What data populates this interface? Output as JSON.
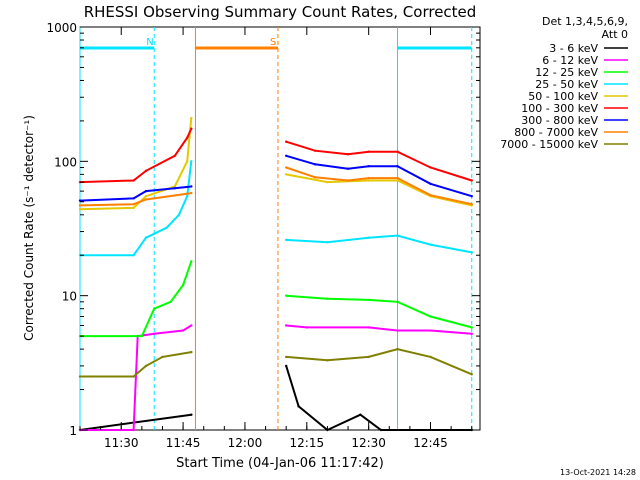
{
  "chart_data": {
    "type": "line",
    "title": "RHESSI Observing Summary Count Rates, Corrected",
    "xlabel": "Start Time (04-Jan-06 11:17:42)",
    "ylabel": "Corrected Count Rate (s⁻¹ detector⁻¹)",
    "yscale": "log",
    "ylim": [
      1,
      1000
    ],
    "xlim_minutes": [
      "11:20",
      "12:57"
    ],
    "x_ticks": [
      "11:30",
      "11:45",
      "12:00",
      "12:15",
      "12:30",
      "12:45"
    ],
    "y_ticks": [
      "1",
      "10",
      "100",
      "1000"
    ],
    "legend_header": [
      "Det 1,3,4,5,6,9,",
      "Att 0"
    ],
    "legend_position": "right",
    "flags": [
      {
        "label": "N",
        "color": "#00e5ff",
        "segments": [
          [
            "11:20",
            "11:38"
          ],
          [
            "12:37",
            "12:55"
          ]
        ]
      },
      {
        "label": "S",
        "color": "#ff8000",
        "segments": [
          [
            "11:48",
            "12:08"
          ]
        ]
      }
    ],
    "vertical_markers": [
      {
        "time": "11:20",
        "color": "#00e5ff",
        "style": "solid"
      },
      {
        "time": "11:38",
        "color": "#00e5ff",
        "style": "dashed"
      },
      {
        "time": "11:48",
        "color": "#ff8000",
        "style": "solid"
      },
      {
        "time": "12:08",
        "color": "#ff8000",
        "style": "dashed"
      },
      {
        "time": "12:37",
        "color": "#00e5ff",
        "style": "solid"
      },
      {
        "time": "12:55",
        "color": "#00e5ff",
        "style": "dashed"
      }
    ],
    "gaps": [
      [
        "11:48",
        "12:10"
      ]
    ],
    "series": [
      {
        "name": "3 - 6 keV",
        "color": "#000000",
        "points": [
          [
            "11:20",
            1
          ],
          [
            "11:47",
            1.3
          ],
          [
            "12:10",
            3
          ],
          [
            "12:13",
            1.5
          ],
          [
            "12:20",
            1
          ],
          [
            "12:28",
            1.3
          ],
          [
            "12:33",
            1
          ],
          [
            "12:55",
            1
          ]
        ]
      },
      {
        "name": "6 - 12 keV",
        "color": "#ff00ff",
        "points": [
          [
            "11:20",
            1
          ],
          [
            "11:33",
            1
          ],
          [
            "11:34",
            5
          ],
          [
            "11:38",
            5.2
          ],
          [
            "11:45",
            5.5
          ],
          [
            "11:47",
            6
          ],
          [
            "12:10",
            6
          ],
          [
            "12:15",
            5.8
          ],
          [
            "12:30",
            5.8
          ],
          [
            "12:37",
            5.5
          ],
          [
            "12:45",
            5.5
          ],
          [
            "12:55",
            5.2
          ]
        ]
      },
      {
        "name": "12 - 25 keV",
        "color": "#00ff00",
        "points": [
          [
            "11:20",
            5
          ],
          [
            "11:35",
            5
          ],
          [
            "11:38",
            8
          ],
          [
            "11:42",
            9
          ],
          [
            "11:45",
            12
          ],
          [
            "11:47",
            18
          ],
          [
            "12:10",
            10
          ],
          [
            "12:20",
            9.5
          ],
          [
            "12:30",
            9.3
          ],
          [
            "12:37",
            9
          ],
          [
            "12:45",
            7
          ],
          [
            "12:55",
            5.8
          ]
        ]
      },
      {
        "name": "25 - 50 keV",
        "color": "#00e5ff",
        "points": [
          [
            "11:20",
            20
          ],
          [
            "11:33",
            20
          ],
          [
            "11:36",
            27
          ],
          [
            "11:41",
            32
          ],
          [
            "11:44",
            40
          ],
          [
            "11:46",
            55
          ],
          [
            "11:47",
            100
          ],
          [
            "12:10",
            26
          ],
          [
            "12:20",
            25
          ],
          [
            "12:30",
            27
          ],
          [
            "12:37",
            28
          ],
          [
            "12:45",
            24
          ],
          [
            "12:55",
            21
          ]
        ]
      },
      {
        "name": "50 - 100 keV",
        "color": "#e6c800",
        "points": [
          [
            "11:20",
            44
          ],
          [
            "11:33",
            45
          ],
          [
            "11:36",
            55
          ],
          [
            "11:43",
            65
          ],
          [
            "11:46",
            100
          ],
          [
            "11:47",
            210
          ],
          [
            "12:10",
            80
          ],
          [
            "12:20",
            70
          ],
          [
            "12:30",
            72
          ],
          [
            "12:37",
            72
          ],
          [
            "12:45",
            55
          ],
          [
            "12:55",
            47
          ]
        ]
      },
      {
        "name": "100 - 300 keV",
        "color": "#ff0000",
        "points": [
          [
            "11:20",
            70
          ],
          [
            "11:33",
            72
          ],
          [
            "11:36",
            85
          ],
          [
            "11:43",
            110
          ],
          [
            "11:46",
            150
          ],
          [
            "11:47",
            175
          ],
          [
            "12:10",
            140
          ],
          [
            "12:17",
            120
          ],
          [
            "12:25",
            113
          ],
          [
            "12:30",
            118
          ],
          [
            "12:37",
            118
          ],
          [
            "12:45",
            90
          ],
          [
            "12:55",
            72
          ]
        ]
      },
      {
        "name": "300 - 800 keV",
        "color": "#0000ff",
        "points": [
          [
            "11:20",
            51
          ],
          [
            "11:33",
            53
          ],
          [
            "11:36",
            60
          ],
          [
            "11:43",
            63
          ],
          [
            "11:47",
            65
          ],
          [
            "12:10",
            110
          ],
          [
            "12:17",
            95
          ],
          [
            "12:25",
            88
          ],
          [
            "12:30",
            92
          ],
          [
            "12:37",
            92
          ],
          [
            "12:45",
            68
          ],
          [
            "12:55",
            55
          ]
        ]
      },
      {
        "name": "800 - 7000 keV",
        "color": "#ff8000",
        "points": [
          [
            "11:20",
            47
          ],
          [
            "11:33",
            48
          ],
          [
            "11:36",
            52
          ],
          [
            "11:47",
            58
          ],
          [
            "12:10",
            90
          ],
          [
            "12:17",
            76
          ],
          [
            "12:25",
            72
          ],
          [
            "12:30",
            75
          ],
          [
            "12:37",
            75
          ],
          [
            "12:45",
            56
          ],
          [
            "12:55",
            48
          ]
        ]
      },
      {
        "name": "7000 - 15000 keV",
        "color": "#808000",
        "points": [
          [
            "11:20",
            2.5
          ],
          [
            "11:33",
            2.5
          ],
          [
            "11:36",
            3
          ],
          [
            "11:40",
            3.5
          ],
          [
            "11:47",
            3.8
          ],
          [
            "12:10",
            3.5
          ],
          [
            "12:20",
            3.3
          ],
          [
            "12:30",
            3.5
          ],
          [
            "12:37",
            4
          ],
          [
            "12:45",
            3.5
          ],
          [
            "12:55",
            2.6
          ]
        ]
      }
    ]
  },
  "timestamp": "13-Oct-2021 14:28"
}
